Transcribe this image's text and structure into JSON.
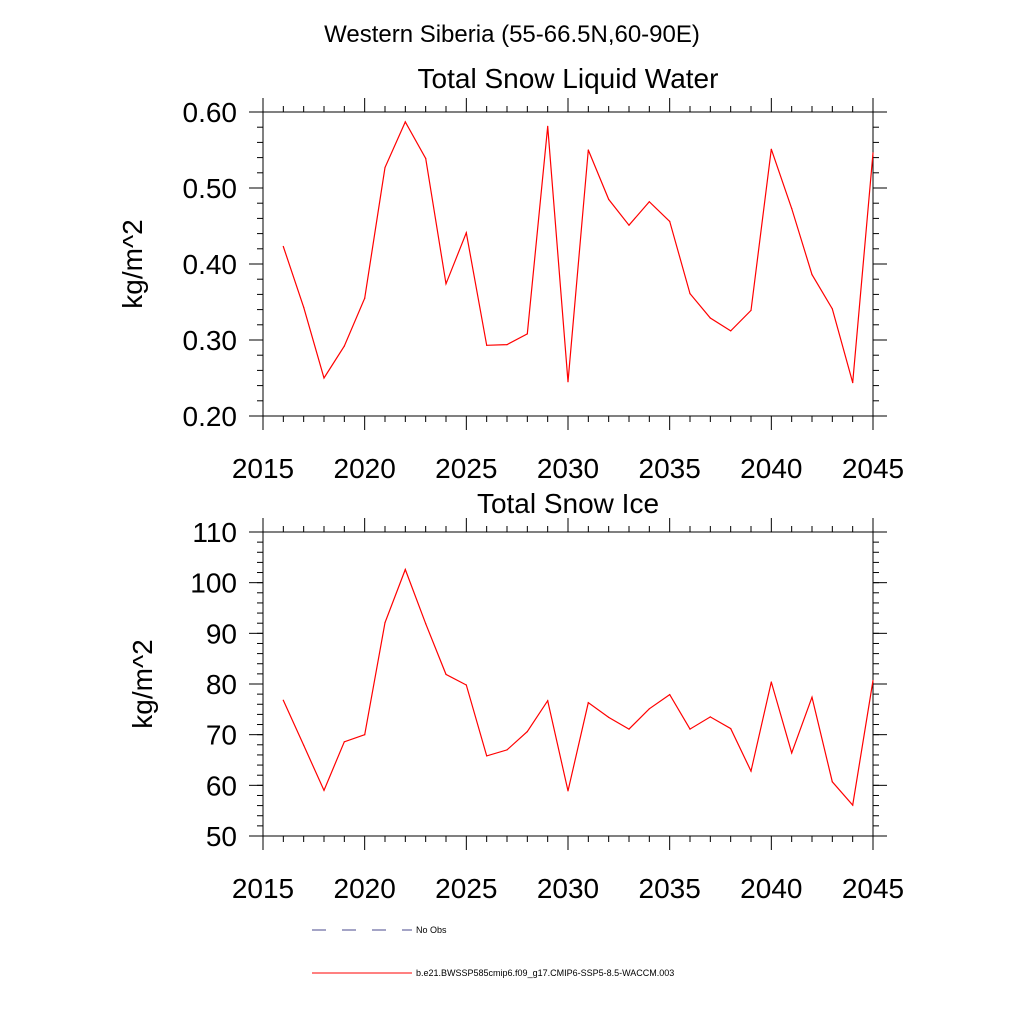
{
  "figure_title": "Western Siberia (55-66.5N,60-90E)",
  "colors": {
    "series": "#ff0000",
    "obs": "#4a4a8c",
    "axis": "#000000"
  },
  "legend": [
    {
      "label": "No Obs",
      "style": "dashed",
      "color": "#4a4a8c"
    },
    {
      "label": "b.e21.BWSSP585cmip6.f09_g17.CMIP6-SSP5-8.5-WACCM.003",
      "style": "solid",
      "color": "#ff0000"
    }
  ],
  "chart_data": [
    {
      "type": "line",
      "title": "Total Snow Liquid Water",
      "xlabel": "",
      "ylabel": "kg/m^2",
      "xlim": [
        2015,
        2045
      ],
      "ylim": [
        0.2,
        0.6
      ],
      "xticks": [
        "2015",
        "2020",
        "2025",
        "2030",
        "2035",
        "2040",
        "2045"
      ],
      "yticks": [
        "0.20",
        "0.30",
        "0.40",
        "0.50",
        "0.60"
      ],
      "ytick_values": [
        0.2,
        0.3,
        0.4,
        0.5,
        0.6
      ],
      "y_minor_step": 0.02,
      "x": [
        2016,
        2017,
        2018,
        2019,
        2020,
        2021,
        2022,
        2023,
        2024,
        2025,
        2026,
        2027,
        2028,
        2029,
        2030,
        2031,
        2032,
        2033,
        2034,
        2035,
        2036,
        2037,
        2038,
        2039,
        2040,
        2041,
        2042,
        2043,
        2044,
        2045
      ],
      "series": [
        {
          "name": "b.e21.BWSSP585cmip6.f09_g17.CMIP6-SSP5-8.5-WACCM.003",
          "values": [
            0.423,
            0.343,
            0.25,
            0.292,
            0.355,
            0.527,
            0.587,
            0.539,
            0.374,
            0.441,
            0.293,
            0.294,
            0.308,
            0.581,
            0.245,
            0.55,
            0.485,
            0.451,
            0.482,
            0.456,
            0.361,
            0.329,
            0.312,
            0.339,
            0.551,
            0.473,
            0.386,
            0.341,
            0.244,
            0.546
          ]
        }
      ],
      "grid": false
    },
    {
      "type": "line",
      "title": "Total Snow Ice",
      "xlabel": "",
      "ylabel": "kg/m^2",
      "xlim": [
        2015,
        2045
      ],
      "ylim": [
        50,
        110
      ],
      "xticks": [
        "2015",
        "2020",
        "2025",
        "2030",
        "2035",
        "2040",
        "2045"
      ],
      "yticks": [
        "50",
        "60",
        "70",
        "80",
        "90",
        "100",
        "110"
      ],
      "ytick_values": [
        50,
        60,
        70,
        80,
        90,
        100,
        110
      ],
      "y_minor_step": 2,
      "x": [
        2016,
        2017,
        2018,
        2019,
        2020,
        2021,
        2022,
        2023,
        2024,
        2025,
        2026,
        2027,
        2028,
        2029,
        2030,
        2031,
        2032,
        2033,
        2034,
        2035,
        2036,
        2037,
        2038,
        2039,
        2040,
        2041,
        2042,
        2043,
        2044,
        2045
      ],
      "series": [
        {
          "name": "b.e21.BWSSP585cmip6.f09_g17.CMIP6-SSP5-8.5-WACCM.003",
          "values": [
            76.8,
            67.9,
            59.0,
            68.6,
            70.0,
            92.1,
            102.6,
            91.9,
            81.9,
            79.8,
            65.8,
            67.0,
            70.6,
            76.7,
            58.9,
            76.3,
            73.4,
            71.1,
            75.1,
            77.9,
            71.1,
            73.5,
            71.2,
            62.8,
            80.4,
            66.4,
            77.4,
            60.7,
            56.1,
            80.7
          ]
        }
      ],
      "grid": false
    }
  ]
}
